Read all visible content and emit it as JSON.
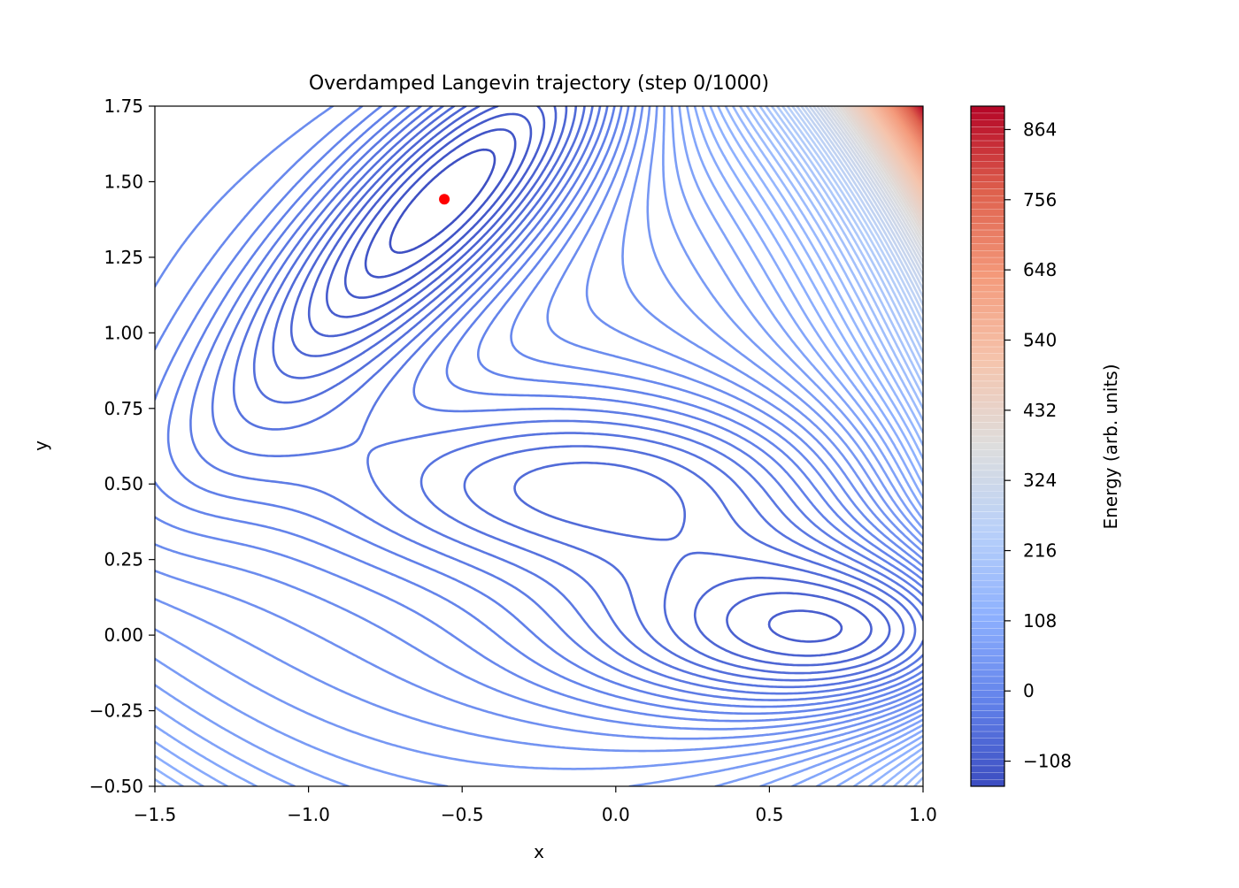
{
  "chart_data": {
    "type": "contour",
    "title": "Overdamped Langevin trajectory (step 0/1000)",
    "xlabel": "x",
    "ylabel": "y",
    "xlim": [
      -1.5,
      1.0
    ],
    "ylim": [
      -0.5,
      1.75
    ],
    "xticks": [
      "−1.5",
      "−1.0",
      "−0.5",
      "0.0",
      "0.5",
      "1.0"
    ],
    "xtick_values": [
      -1.5,
      -1.0,
      -0.5,
      0.0,
      0.5,
      1.0
    ],
    "yticks": [
      "−0.50",
      "−0.25",
      "0.00",
      "0.25",
      "0.50",
      "0.75",
      "1.00",
      "1.25",
      "1.50",
      "1.75"
    ],
    "ytick_values": [
      -0.5,
      -0.25,
      0,
      0.25,
      0.5,
      0.75,
      1.0,
      1.25,
      1.5,
      1.75
    ],
    "colormap": "coolwarm",
    "levels": {
      "min": -146.7,
      "max": 900,
      "count": 100
    },
    "colorbar": {
      "label": "Energy (arb. units)",
      "ticks": [
        "−108",
        "0",
        "108",
        "216",
        "324",
        "432",
        "540",
        "648",
        "756",
        "864"
      ],
      "tick_values": [
        -108,
        0,
        108,
        216,
        324,
        432,
        540,
        648,
        756,
        864
      ]
    },
    "marker": {
      "x": -0.558,
      "y": 1.442,
      "color": "#ff0000"
    },
    "grid": false
  }
}
